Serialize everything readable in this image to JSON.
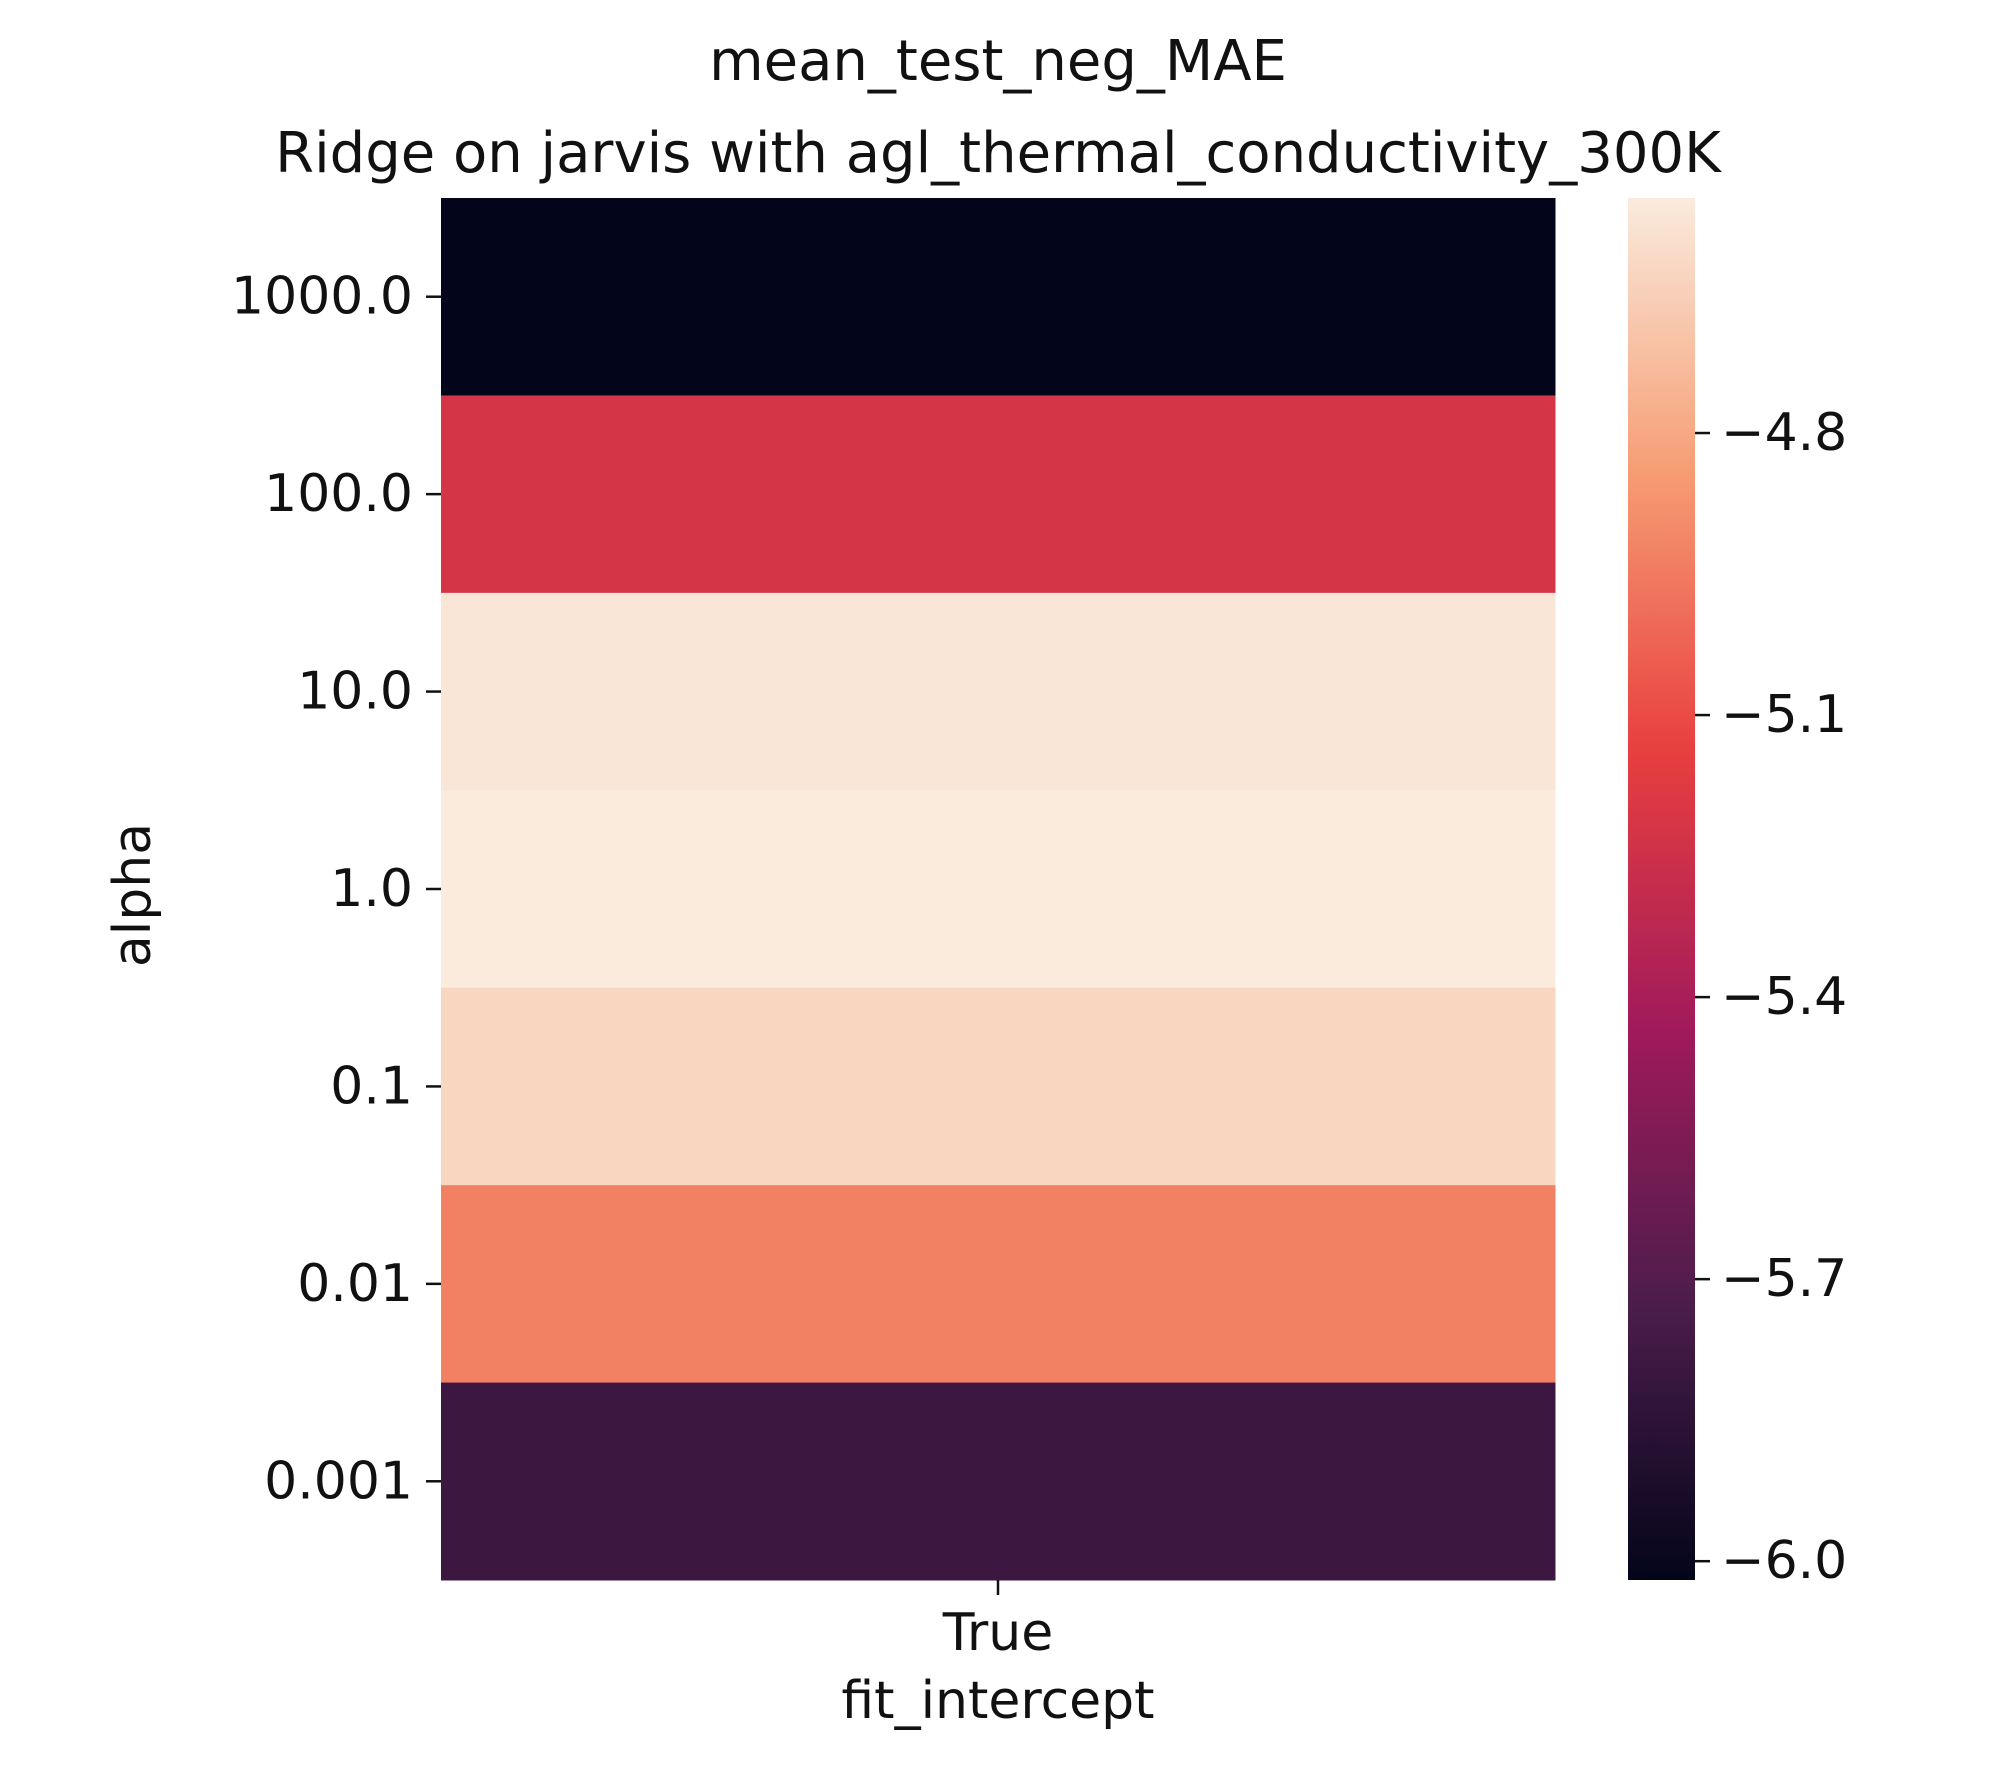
{
  "chart_data": {
    "type": "heatmap",
    "title_lines": [
      "mean_test_neg_MAE",
      "Ridge on jarvis with agl_thermal_conductivity_300K"
    ],
    "xlabel": "fit_intercept",
    "ylabel": "alpha",
    "x_categories": [
      "True"
    ],
    "y_categories": [
      "1000.0",
      "100.0",
      "10.0",
      "1.0",
      "0.1",
      "0.01",
      "0.001"
    ],
    "values": [
      [
        -6.02
      ],
      [
        -5.22
      ],
      [
        -4.57
      ],
      [
        -4.55
      ],
      [
        -4.63
      ],
      [
        -4.93
      ],
      [
        -5.79
      ]
    ],
    "colorbar": {
      "vmin": -6.02,
      "vmax": -4.55,
      "ticks": [
        -6.0,
        -5.7,
        -5.4,
        -5.1,
        -4.8
      ],
      "tick_labels": [
        "−6.0",
        "−5.7",
        "−5.4",
        "−5.1",
        "−4.8"
      ]
    },
    "colormap": "rocket",
    "colormap_stops": [
      "#03051a",
      "#4c1d4b",
      "#a11a5b",
      "#e83f3f",
      "#f69c73",
      "#faebdd"
    ]
  }
}
